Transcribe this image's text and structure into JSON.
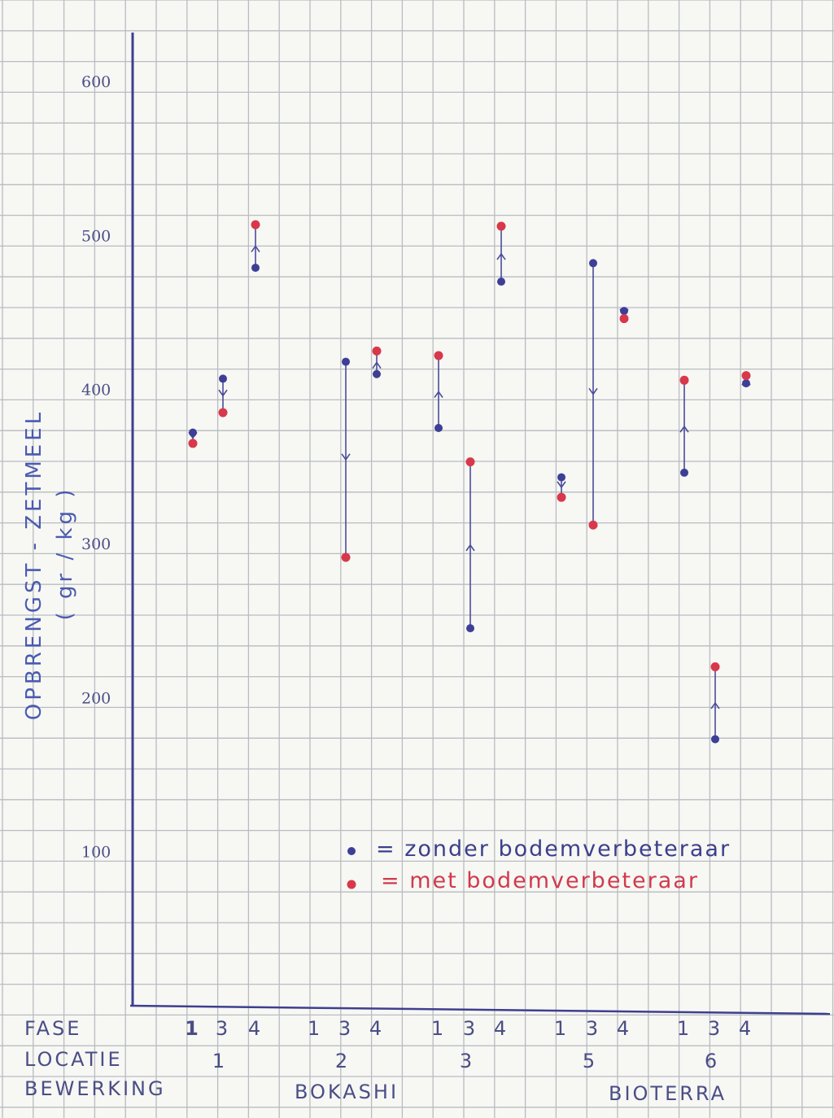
{
  "chart_data": {
    "type": "scatter",
    "ylabel": "OPBRENGST - ZETMEEL",
    "yunit": "( gr / kg )",
    "yticks": [
      "100",
      "200",
      "300",
      "400",
      "500",
      "600"
    ],
    "ylim": [
      0,
      630
    ],
    "grid": true,
    "row_labels": {
      "fase": "FASE",
      "locatie": "LOCATIE",
      "bewerking": "BEWERKING"
    },
    "groups": [
      {
        "locatie": "1",
        "fases": [
          "1",
          "3",
          "4"
        ]
      },
      {
        "locatie": "2",
        "fases": [
          "1",
          "3",
          "4"
        ]
      },
      {
        "locatie": "3",
        "fases": [
          "1",
          "3",
          "4"
        ]
      },
      {
        "locatie": "5",
        "fases": [
          "1",
          "3",
          "4"
        ]
      },
      {
        "locatie": "6",
        "fases": [
          "1",
          "3",
          "4"
        ]
      }
    ],
    "bewerking_labels": [
      "BOKASHI",
      "BIOTERRA"
    ],
    "series": [
      {
        "name": "zonder bodemverbeteraar",
        "color": "#3d3f96",
        "values": [
          [
            372,
            407,
            479
          ],
          [
            null,
            418,
            410
          ],
          [
            375,
            245,
            470
          ],
          [
            343,
            482,
            451
          ],
          [
            346,
            173,
            404
          ]
        ]
      },
      {
        "name": "met bodemverbeteraar",
        "color": "#d8384a",
        "values": [
          [
            365,
            385,
            507
          ],
          [
            null,
            291,
            425
          ],
          [
            422,
            353,
            506
          ],
          [
            330,
            312,
            446
          ],
          [
            406,
            220,
            409
          ]
        ]
      }
    ],
    "legend": {
      "zonder": "= zonder bodemverbeteraar",
      "met": "= met bodemverbeteraar",
      "position": "bottom-center"
    }
  }
}
